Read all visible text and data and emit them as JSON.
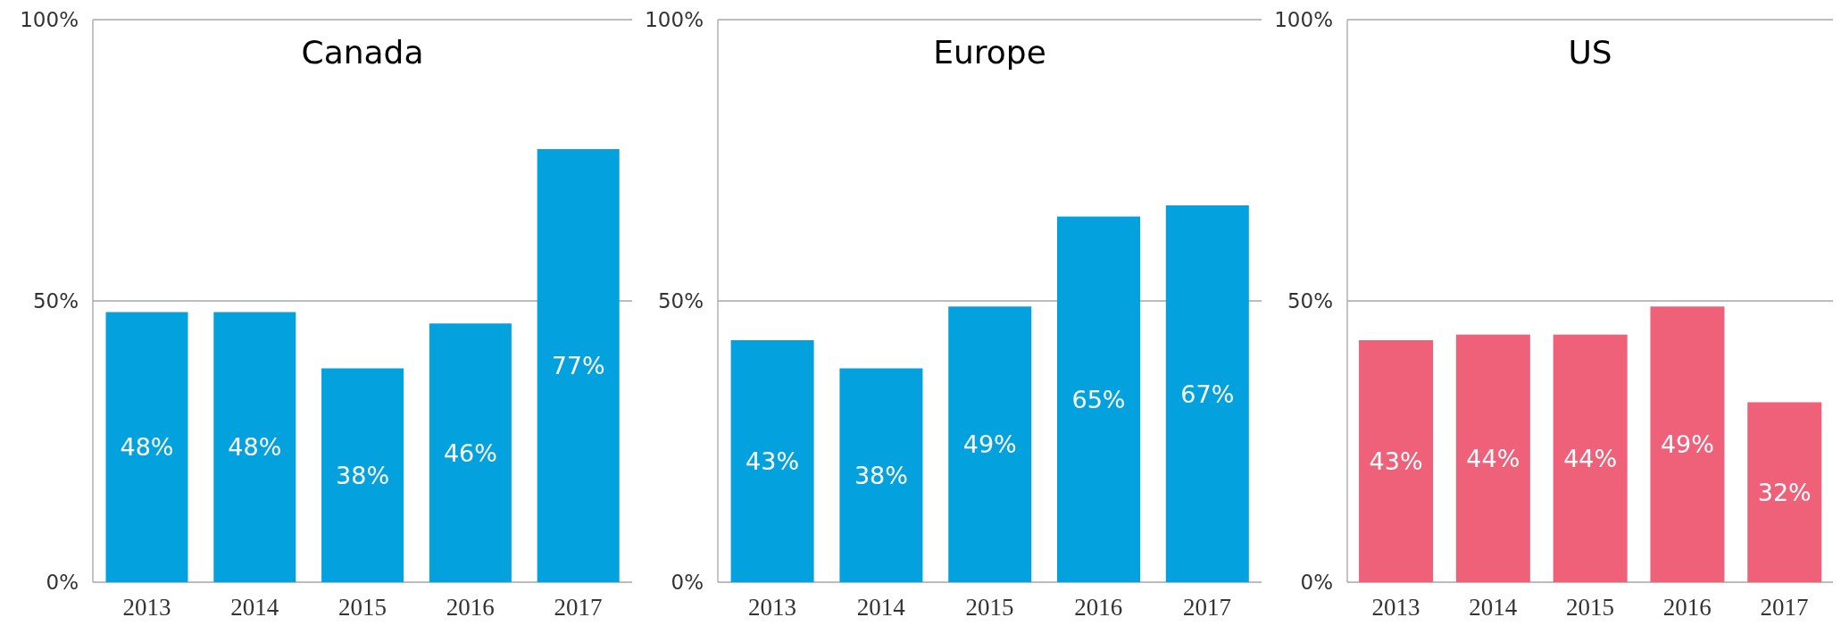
{
  "chart_data": [
    {
      "type": "bar",
      "title": "Canada",
      "categories": [
        "2013",
        "2014",
        "2015",
        "2016",
        "2017"
      ],
      "values": [
        48,
        48,
        38,
        46,
        77
      ],
      "value_labels": [
        "48%",
        "48%",
        "38%",
        "46%",
        "77%"
      ],
      "color": "#03a2df",
      "ylim": [
        0,
        100
      ],
      "yticks": [
        {
          "value": 0,
          "label": "0%"
        },
        {
          "value": 50,
          "label": "50%"
        },
        {
          "value": 100,
          "label": "100%"
        }
      ],
      "grid": "y"
    },
    {
      "type": "bar",
      "title": "Europe",
      "categories": [
        "2013",
        "2014",
        "2015",
        "2016",
        "2017"
      ],
      "values": [
        43,
        38,
        49,
        65,
        67
      ],
      "value_labels": [
        "43%",
        "38%",
        "49%",
        "65%",
        "67%"
      ],
      "color": "#03a2df",
      "ylim": [
        0,
        100
      ],
      "yticks": [
        {
          "value": 0,
          "label": "0%"
        },
        {
          "value": 50,
          "label": "50%"
        },
        {
          "value": 100,
          "label": "100%"
        }
      ],
      "grid": "y"
    },
    {
      "type": "bar",
      "title": "US",
      "categories": [
        "2013",
        "2014",
        "2015",
        "2016",
        "2017"
      ],
      "values": [
        43,
        44,
        44,
        49,
        32
      ],
      "value_labels": [
        "43%",
        "44%",
        "44%",
        "49%",
        "32%"
      ],
      "color": "#ef6079",
      "ylim": [
        0,
        100
      ],
      "yticks": [
        {
          "value": 0,
          "label": "0%"
        },
        {
          "value": 50,
          "label": "50%"
        },
        {
          "value": 100,
          "label": "100%"
        }
      ],
      "grid": "y"
    }
  ]
}
